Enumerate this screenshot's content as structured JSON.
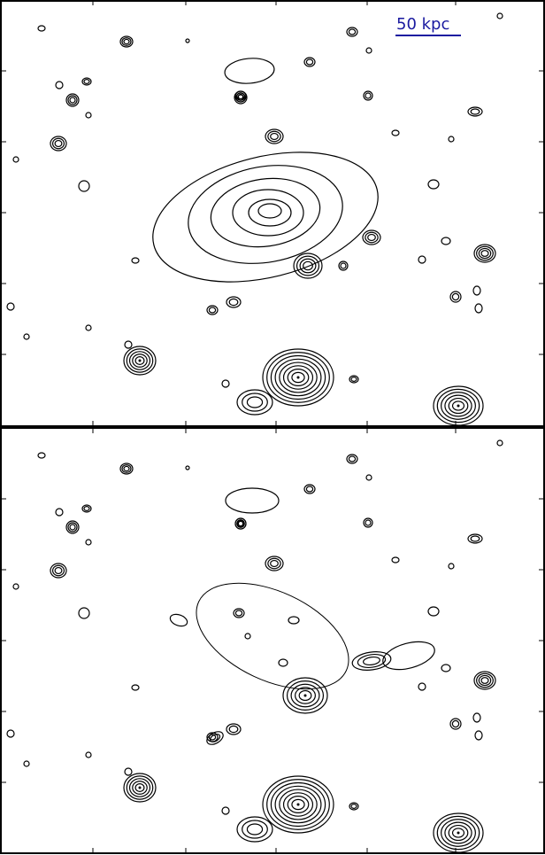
{
  "scale_bar": {
    "label": "50 kpc"
  }
}
